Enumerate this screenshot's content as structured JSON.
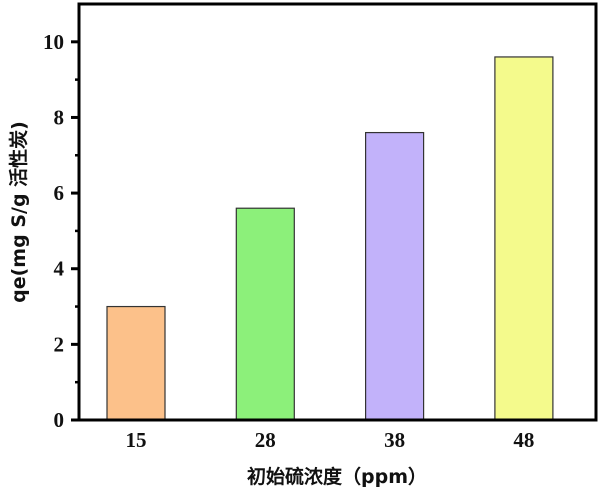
{
  "chart_data": {
    "type": "bar",
    "title": "",
    "xlabel": "初始硫浓度（ppm）",
    "ylabel": "qe(mg S/g 活性炭)",
    "categories": [
      "15",
      "28",
      "38",
      "48"
    ],
    "values": [
      3.0,
      5.6,
      7.6,
      9.6
    ],
    "colors": [
      "#FCC18A",
      "#8CF07A",
      "#C2B2FA",
      "#F4FA8C"
    ],
    "ylim": [
      0,
      11
    ],
    "yticks": [
      0,
      2,
      4,
      6,
      8,
      10
    ],
    "yticks_labels": [
      "0",
      "2",
      "4",
      "6",
      "8",
      "10"
    ],
    "grid": false,
    "legend": "none"
  }
}
